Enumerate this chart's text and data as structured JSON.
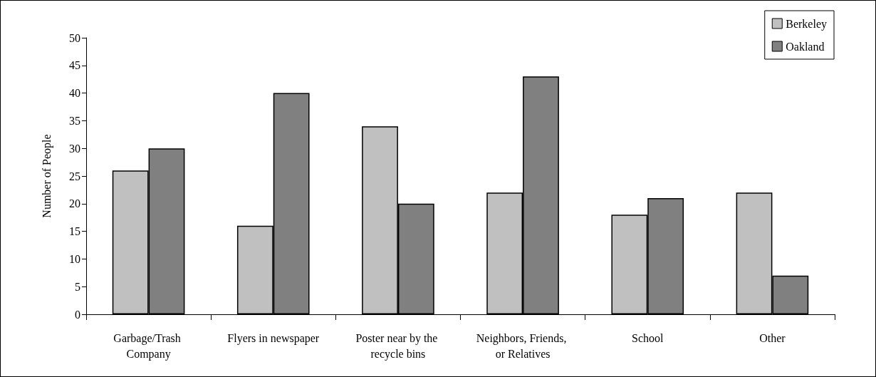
{
  "chart_data": {
    "type": "bar",
    "ylabel": "Number of People",
    "categories": [
      "Garbage/Trash Company",
      "Flyers in newspaper",
      "Poster near by the recycle bins",
      "Neighbors, Friends, or Relatives",
      "School",
      "Other"
    ],
    "series": [
      {
        "name": "Berkeley",
        "color": "#c0c0c0",
        "values": [
          26,
          16,
          34,
          22,
          18,
          22
        ]
      },
      {
        "name": "Oakland",
        "color": "#808080",
        "values": [
          30,
          40,
          20,
          43,
          21,
          7
        ]
      }
    ],
    "ylim": [
      0,
      50
    ],
    "yticks": [
      0,
      5,
      10,
      15,
      20,
      25,
      30,
      35,
      40,
      45,
      50
    ],
    "grid": false,
    "legend": "top right"
  }
}
